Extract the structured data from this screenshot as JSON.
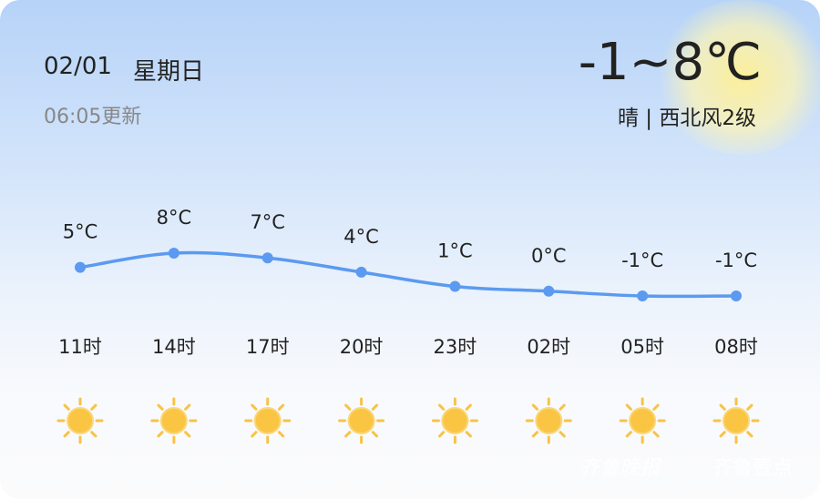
{
  "header": {
    "date": "02/01",
    "weekday": "星期日",
    "updated": "06:05更新",
    "range": "-1~8℃",
    "condition": "晴 | 西北风2级"
  },
  "watermark": {
    "paper": "齐鲁晚报",
    "app": "齐鲁壹点"
  },
  "chart_data": {
    "type": "line",
    "categories": [
      "11时",
      "14时",
      "17时",
      "20时",
      "23时",
      "02时",
      "05时",
      "08时"
    ],
    "values": [
      5,
      8,
      7,
      4,
      1,
      0,
      -1,
      -1
    ],
    "value_labels": [
      "5°C",
      "8°C",
      "7°C",
      "4°C",
      "1°C",
      "0°C",
      "-1°C",
      "-1°C"
    ],
    "color": "#5b9af0"
  }
}
